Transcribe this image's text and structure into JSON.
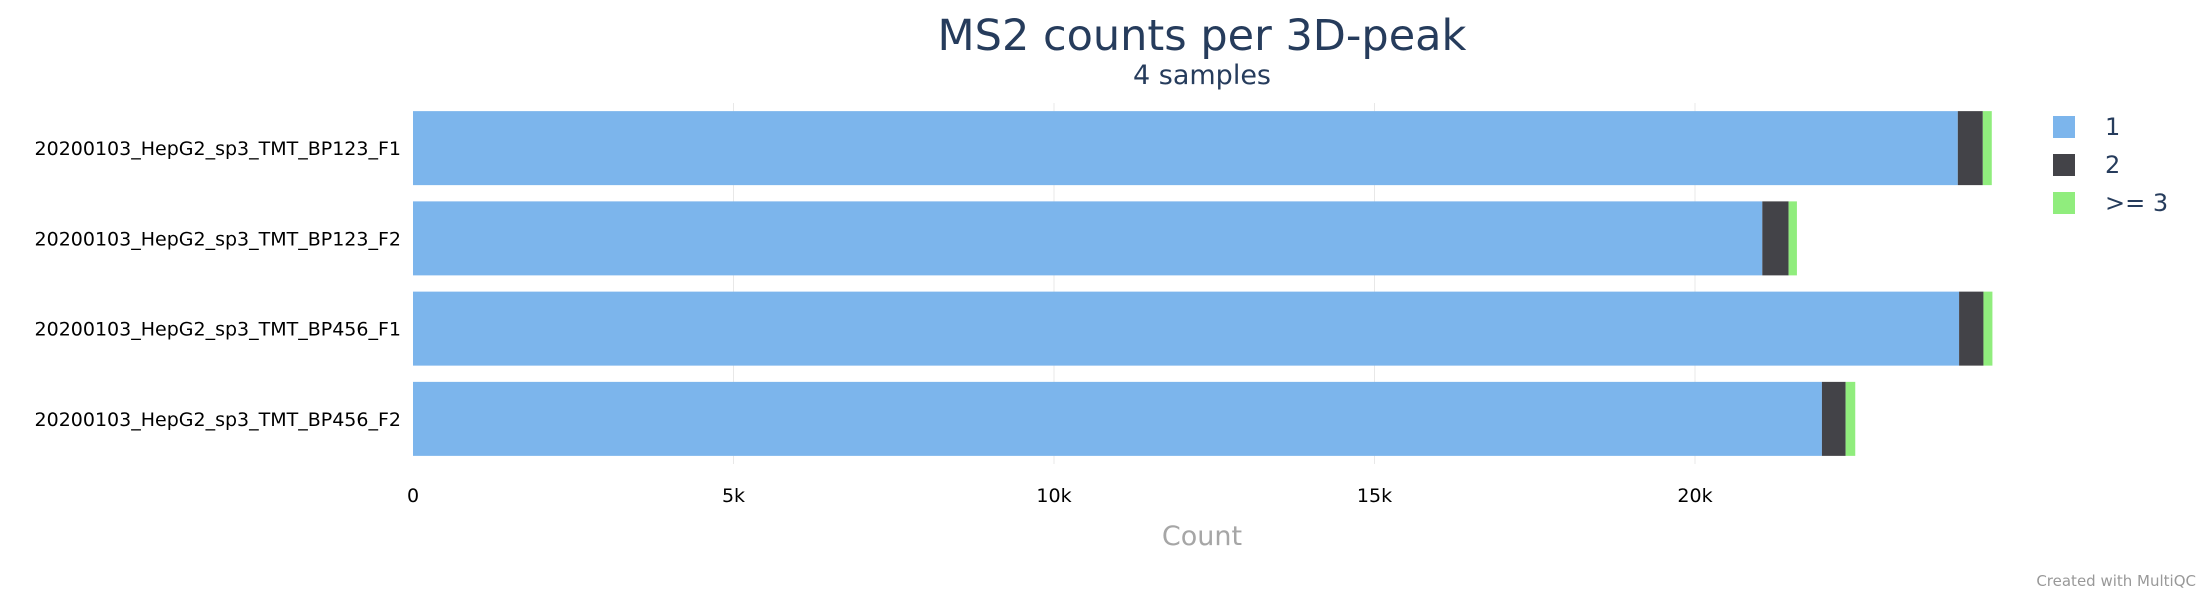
{
  "chart_data": {
    "type": "bar",
    "orientation": "horizontal",
    "stacked": true,
    "title": "MS2 counts per 3D-peak",
    "subtitle": "4 samples",
    "xlabel": "Count",
    "ylabel": "",
    "xlim": [
      0,
      25000
    ],
    "x_ticks": [
      0,
      5000,
      10000,
      15000,
      20000
    ],
    "x_tick_labels": [
      "0",
      "5k",
      "10k",
      "15k",
      "20k"
    ],
    "grid": true,
    "legend_position": "top-right",
    "categories": [
      "20200103_HepG2_sp3_TMT_BP123_F1",
      "20200103_HepG2_sp3_TMT_BP123_F2",
      "20200103_HepG2_sp3_TMT_BP456_F1",
      "20200103_HepG2_sp3_TMT_BP456_F2"
    ],
    "series": [
      {
        "name": "1",
        "color": "#7cb5ec",
        "values": [
          24100,
          21050,
          24120,
          21980
        ]
      },
      {
        "name": "2",
        "color": "#434348",
        "values": [
          390,
          410,
          380,
          370
        ]
      },
      {
        "name": ">= 3",
        "color": "#90ed7d",
        "values": [
          140,
          130,
          140,
          150
        ]
      }
    ],
    "credit": "Created with MultiQC"
  }
}
